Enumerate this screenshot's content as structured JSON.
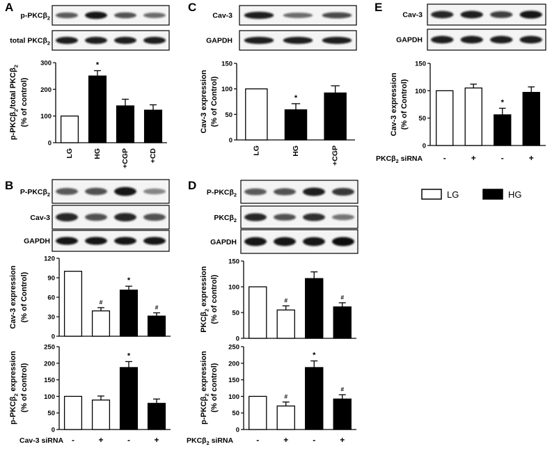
{
  "panels": {
    "A": {
      "letter": "A",
      "blots": [
        {
          "label": "p-PKCβ",
          "sub": "2"
        },
        {
          "label": "total PKCβ",
          "sub": "2"
        }
      ],
      "ylabel1": {
        "label": "p-PKCβ",
        "sub": "2",
        "tail": "/total PKCβ",
        "sub2": "2"
      },
      "ylabel2": "(% of control)"
    },
    "B": {
      "letter": "B",
      "blots": [
        {
          "label": "P-PKCβ",
          "sub": "2"
        },
        {
          "label": "Cav-3",
          "sub": ""
        },
        {
          "label": "GAPDH",
          "sub": ""
        }
      ],
      "top_ylabel1": "Cav-3 expression",
      "top_ylabel2": "(% of Control)",
      "bottom_ylabel1": {
        "label": "p-PKCβ",
        "sub": "2",
        "tail": " expression"
      },
      "bottom_ylabel2": "(% of control)",
      "sirna_label": "Cav-3 siRNA",
      "sirna_signs": [
        "-",
        "+",
        "-",
        "+"
      ]
    },
    "C": {
      "letter": "C",
      "blots": [
        {
          "label": "Cav-3",
          "sub": ""
        },
        {
          "label": "GAPDH",
          "sub": ""
        }
      ],
      "ylabel1": "Cav-3 expression",
      "ylabel2": "(% of Control)"
    },
    "D": {
      "letter": "D",
      "blots": [
        {
          "label": "P-PKCβ",
          "sub": "2"
        },
        {
          "label": "PKCβ",
          "sub": "2"
        },
        {
          "label": "GAPDH",
          "sub": ""
        }
      ],
      "top_ylabel1": {
        "label": "PKCβ",
        "sub": "2",
        "tail": " expression"
      },
      "top_ylabel2": "(% of control)",
      "bottom_ylabel1": {
        "label": "p-PKCβ",
        "sub": "2",
        "tail": " expression"
      },
      "bottom_ylabel2": "(% of control)",
      "sirna_label": {
        "label": "PKCβ",
        "sub": "2",
        "tail": " siRNA"
      },
      "sirna_signs": [
        "-",
        "+",
        "-",
        "+"
      ]
    },
    "E": {
      "letter": "E",
      "blots": [
        {
          "label": "Cav-3",
          "sub": ""
        },
        {
          "label": "GAPDH",
          "sub": ""
        }
      ],
      "ylabel1": "Cav-3 expression",
      "ylabel2": "(% of Control)",
      "sirna_label": {
        "label": "PKCβ",
        "sub": "2",
        "tail": " siRNA"
      },
      "sirna_signs": [
        "-",
        "+",
        "-",
        "+"
      ]
    }
  },
  "legend": {
    "items": [
      {
        "label": "LG",
        "fill": "#ffffff"
      },
      {
        "label": "HG",
        "fill": "#000000"
      }
    ]
  },
  "colors": {
    "lg": "#ffffff",
    "hg": "#000000",
    "band": "#1a1a1a"
  },
  "chart_data": [
    {
      "id": "A",
      "type": "bar",
      "categories": [
        "LG",
        "HG",
        "+CGP",
        "+CD"
      ],
      "values": [
        100,
        250,
        138,
        122
      ],
      "errors": [
        0,
        20,
        25,
        20
      ],
      "groups": [
        "LG",
        "HG",
        "HG",
        "HG"
      ],
      "significance": [
        "",
        "*",
        "",
        ""
      ],
      "ylim": [
        0,
        300
      ],
      "yticks": [
        0,
        100,
        200,
        300
      ]
    },
    {
      "id": "C",
      "type": "bar",
      "categories": [
        "LG",
        "HG",
        "+CGP"
      ],
      "values": [
        100,
        59,
        92
      ],
      "errors": [
        0,
        12,
        14
      ],
      "groups": [
        "LG",
        "HG",
        "HG"
      ],
      "significance": [
        "",
        "*",
        ""
      ],
      "ylim": [
        0,
        150
      ],
      "yticks": [
        0,
        50,
        100,
        150
      ]
    },
    {
      "id": "E",
      "type": "bar",
      "categories": [
        "-",
        "+",
        "-",
        "+"
      ],
      "values": [
        100,
        105,
        56,
        97
      ],
      "errors": [
        0,
        7,
        12,
        10
      ],
      "groups": [
        "LG",
        "LG",
        "HG",
        "HG"
      ],
      "significance": [
        "",
        "",
        "*",
        ""
      ],
      "ylim": [
        0,
        150
      ],
      "yticks": [
        0,
        50,
        100,
        150
      ]
    },
    {
      "id": "B-top",
      "type": "bar",
      "categories": [
        "-",
        "+",
        "-",
        "+"
      ],
      "values": [
        100,
        39,
        71,
        31
      ],
      "errors": [
        0,
        5,
        6,
        5
      ],
      "groups": [
        "LG",
        "LG",
        "HG",
        "HG"
      ],
      "significance": [
        "",
        "#",
        "*",
        "#"
      ],
      "ylim": [
        0,
        120
      ],
      "yticks": [
        0,
        30,
        60,
        90,
        120
      ]
    },
    {
      "id": "B-bottom",
      "type": "bar",
      "categories": [
        "-",
        "+",
        "-",
        "+"
      ],
      "values": [
        100,
        89,
        187,
        79
      ],
      "errors": [
        0,
        12,
        18,
        13
      ],
      "groups": [
        "LG",
        "LG",
        "HG",
        "HG"
      ],
      "significance": [
        "",
        "",
        "*",
        ""
      ],
      "ylim": [
        0,
        250
      ],
      "yticks": [
        0,
        50,
        100,
        150,
        200,
        250
      ]
    },
    {
      "id": "D-top",
      "type": "bar",
      "categories": [
        "-",
        "+",
        "-",
        "+"
      ],
      "values": [
        100,
        55,
        116,
        61
      ],
      "errors": [
        0,
        8,
        13,
        8
      ],
      "groups": [
        "LG",
        "LG",
        "HG",
        "HG"
      ],
      "significance": [
        "",
        "#",
        "",
        "#"
      ],
      "ylim": [
        0,
        150
      ],
      "yticks": [
        0,
        50,
        100,
        150
      ]
    },
    {
      "id": "D-bottom",
      "type": "bar",
      "categories": [
        "-",
        "+",
        "-",
        "+"
      ],
      "values": [
        100,
        71,
        187,
        92
      ],
      "errors": [
        0,
        12,
        20,
        13
      ],
      "groups": [
        "LG",
        "LG",
        "HG",
        "HG"
      ],
      "significance": [
        "",
        "#",
        "*",
        "#"
      ],
      "ylim": [
        0,
        250
      ],
      "yticks": [
        0,
        50,
        100,
        150,
        200,
        250
      ]
    }
  ]
}
